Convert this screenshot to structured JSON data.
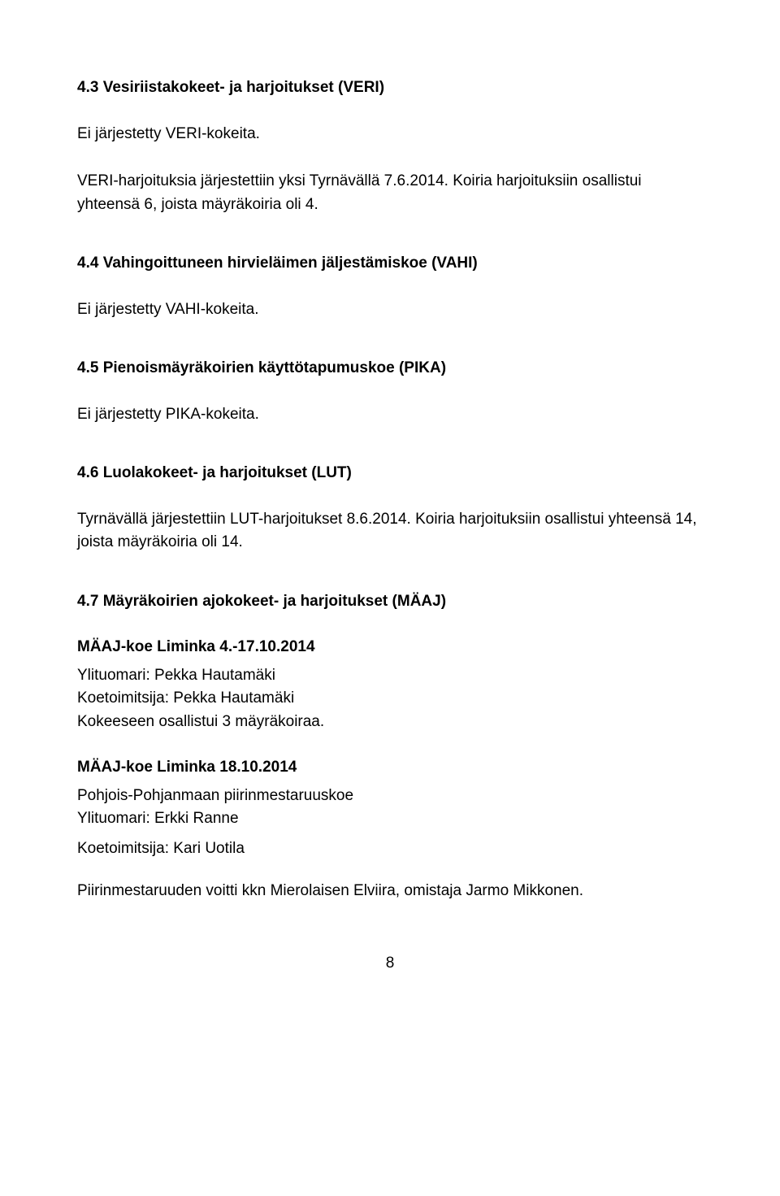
{
  "s43": {
    "heading": "4.3  Vesiriistakokeet- ja harjoitukset (VERI)",
    "p1": "Ei järjestetty VERI-kokeita.",
    "p2": "VERI-harjoituksia järjestettiin yksi Tyrnävällä 7.6.2014. Koiria harjoituksiin osallistui yhteensä 6, joista mäyräkoiria oli 4."
  },
  "s44": {
    "heading": "4.4  Vahingoittuneen hirvieläimen jäljestämiskoe (VAHI)",
    "p1": "Ei järjestetty VAHI-kokeita."
  },
  "s45": {
    "heading": "4.5  Pienoismäyräkoirien käyttötapumuskoe  (PIKA)",
    "p1": "Ei järjestetty PIKA-kokeita."
  },
  "s46": {
    "heading": "4.6  Luolakokeet- ja harjoitukset (LUT)",
    "p1": "Tyrnävällä järjestettiin LUT-harjoitukset 8.6.2014. Koiria harjoituksiin osallistui yhteensä 14, joista mäyräkoiria oli 14."
  },
  "s47": {
    "heading": "4.7  Mäyräkoirien ajokokeet- ja harjoitukset (MÄAJ)",
    "event1": {
      "title": "MÄAJ-koe Liminka 4.-17.10.2014",
      "l1": "Ylituomari: Pekka Hautamäki",
      "l2": "Koetoimitsija: Pekka Hautamäki",
      "l3": "Kokeeseen osallistui 3 mäyräkoiraa."
    },
    "event2": {
      "title": "MÄAJ-koe Liminka 18.10.2014",
      "l1": "Pohjois-Pohjanmaan piirinmestaruuskoe",
      "l2": "Ylituomari: Erkki Ranne",
      "l3": "Koetoimitsija: Kari Uotila",
      "l4": "Piirinmestaruuden voitti kkn Mierolaisen Elviira, omistaja Jarmo Mikkonen."
    }
  },
  "pageNumber": "8"
}
